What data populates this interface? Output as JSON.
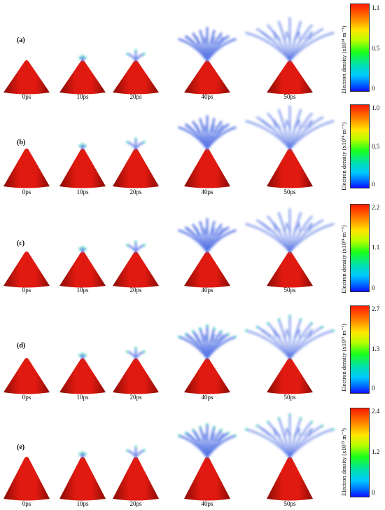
{
  "rows": [
    {
      "letter": "(a)",
      "times": [
        "0ps",
        "10ps",
        "20ps",
        "40ps",
        "50ps"
      ],
      "colorbar": {
        "title": "Electron density (x10²⁴ m⁻³)",
        "ticks": [
          "1.1",
          "0.5",
          "0"
        ]
      }
    },
    {
      "letter": "(b)",
      "times": [
        "0ps",
        "10ps",
        "20ps",
        "40ps",
        "50ps"
      ],
      "colorbar": {
        "title": "Electron density (x10²⁴ m⁻³)",
        "ticks": [
          "1.0",
          "0.5",
          "0"
        ]
      }
    },
    {
      "letter": "(c)",
      "times": [
        "0ps",
        "10ps",
        "20ps",
        "40ps",
        "50ps"
      ],
      "colorbar": {
        "title": "Electron density (x10²⁴ m⁻³)",
        "ticks": [
          "2.2",
          "1.1",
          "0"
        ]
      }
    },
    {
      "letter": "(d)",
      "times": [
        "0ps",
        "10ps",
        "20ps",
        "40ps",
        "50ps"
      ],
      "colorbar": {
        "title": "Electron density (x10²³ m⁻³)",
        "ticks": [
          "2.7",
          "1.3",
          "0"
        ]
      }
    },
    {
      "letter": "(e)",
      "times": [
        "0ps",
        "10ps",
        "20ps",
        "40ps",
        "50ps"
      ],
      "colorbar": {
        "title": "Electron density (x10²³ m⁻³)",
        "ticks": [
          "2.4",
          "1.2",
          "0"
        ]
      }
    }
  ],
  "colors": {
    "cone": "#e01a10",
    "cone_dark": "#8a0c06",
    "streamer": "#5a78e6",
    "streamer_core": "#2dd4b0"
  }
}
